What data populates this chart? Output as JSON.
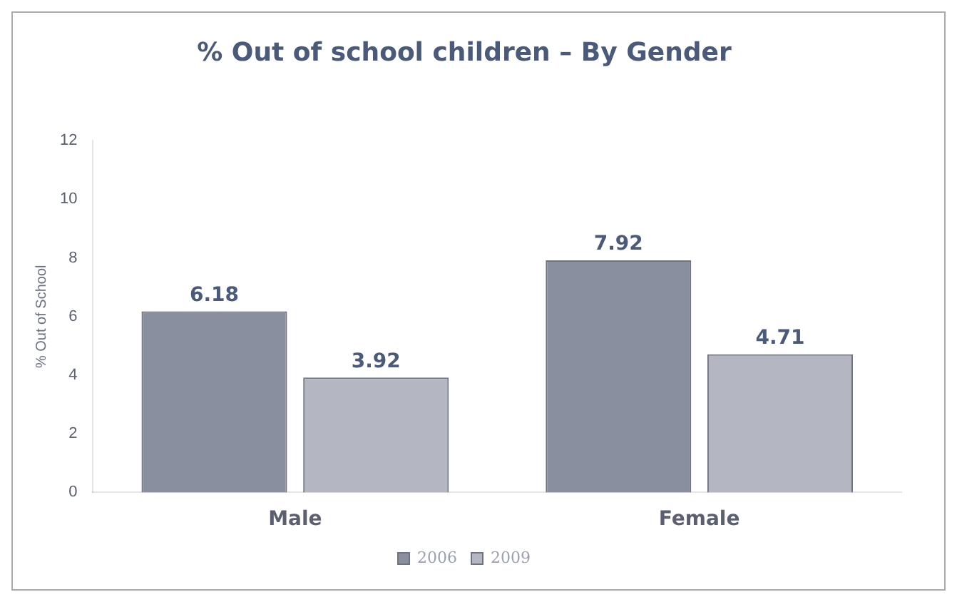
{
  "chart_data": {
    "type": "bar",
    "title": "% Out of school children – By Gender",
    "ylabel": "% Out of School",
    "categories": [
      "Male",
      "Female"
    ],
    "series": [
      {
        "name": "2006",
        "color": "#8a8fa0",
        "values": [
          6.18,
          7.92
        ]
      },
      {
        "name": "2009",
        "color": "#b4b7c2",
        "values": [
          3.92,
          4.71
        ]
      }
    ],
    "ylim": [
      0,
      12
    ],
    "yticks": [
      0,
      2,
      4,
      6,
      8,
      10,
      12
    ],
    "grid": false,
    "legend": "bottom",
    "data_labels": true
  }
}
